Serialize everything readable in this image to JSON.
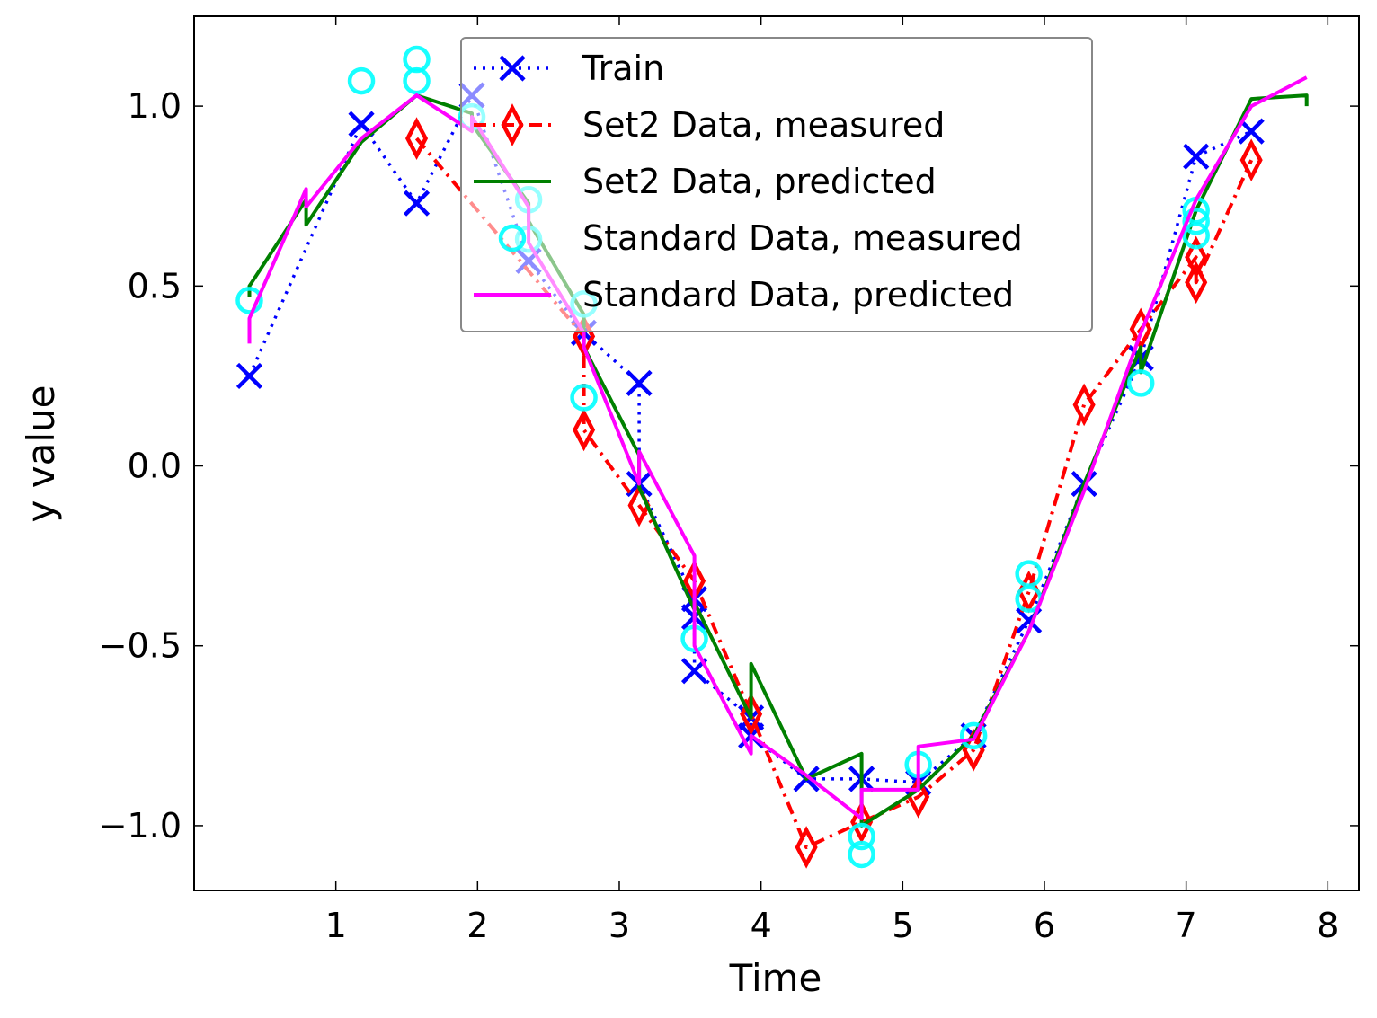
{
  "chart_data": {
    "type": "line",
    "title": "",
    "xlabel": "Time",
    "ylabel": "y value",
    "xlim": [
      0.0,
      8.22
    ],
    "ylim": [
      -1.18,
      1.25
    ],
    "xticks": [
      1,
      2,
      3,
      4,
      5,
      6,
      7,
      8
    ],
    "xtick_labels": [
      "1",
      "2",
      "3",
      "4",
      "5",
      "6",
      "7",
      "8"
    ],
    "yticks": [
      -1.0,
      -0.5,
      0.0,
      0.5,
      1.0
    ],
    "ytick_labels": [
      "−1.0",
      "−0.5",
      "0.0",
      "0.5",
      "1.0"
    ],
    "grid": false,
    "legend_position": "top-center",
    "series": [
      {
        "name": "Train",
        "style": "dotted",
        "marker": "x",
        "color": "#0000ff",
        "x": [
          0.39,
          1.18,
          1.57,
          1.96,
          2.36,
          2.75,
          3.14,
          3.14,
          3.53,
          3.53,
          3.53,
          3.93,
          3.93,
          4.32,
          4.71,
          5.11,
          5.5,
          5.89,
          6.28,
          6.68,
          7.07,
          7.46
        ],
        "y": [
          0.25,
          0.95,
          0.73,
          1.03,
          0.57,
          0.37,
          0.23,
          -0.05,
          -0.37,
          -0.42,
          -0.57,
          -0.7,
          -0.75,
          -0.87,
          -0.87,
          -0.88,
          -0.75,
          -0.43,
          -0.05,
          0.3,
          0.86,
          0.93
        ]
      },
      {
        "name": "Set2 Data, measured",
        "style": "dashdot",
        "marker": "diamond",
        "color": "#ff0000",
        "x": [
          1.57,
          2.75,
          2.75,
          3.14,
          3.53,
          3.93,
          4.32,
          4.71,
          5.11,
          5.5,
          5.89,
          6.28,
          6.68,
          7.07,
          7.07,
          7.46
        ],
        "y": [
          0.91,
          0.36,
          0.1,
          -0.11,
          -0.32,
          -0.69,
          -1.06,
          -0.99,
          -0.92,
          -0.79,
          -0.35,
          0.17,
          0.38,
          0.58,
          0.51,
          0.85
        ]
      },
      {
        "name": "Set2 Data, predicted",
        "style": "solid",
        "marker": "none",
        "color": "#008000",
        "x": [
          0.39,
          0.39,
          0.79,
          0.79,
          1.18,
          1.57,
          1.96,
          1.96,
          2.36,
          2.36,
          2.75,
          2.75,
          3.14,
          3.14,
          3.53,
          3.53,
          3.93,
          3.93,
          4.32,
          4.71,
          4.71,
          5.11,
          5.5,
          5.89,
          6.28,
          6.68,
          6.68,
          7.07,
          7.46,
          7.85,
          7.85
        ],
        "y": [
          0.47,
          0.5,
          0.74,
          0.67,
          0.9,
          1.03,
          0.98,
          0.95,
          0.73,
          0.68,
          0.42,
          0.33,
          0.03,
          -0.06,
          -0.4,
          -0.38,
          -0.7,
          -0.55,
          -0.87,
          -0.8,
          -1.0,
          -0.9,
          -0.75,
          -0.46,
          -0.05,
          0.33,
          0.26,
          0.71,
          1.02,
          1.03,
          1.0
        ]
      },
      {
        "name": "Standard Data, measured",
        "style": "none",
        "marker": "circle",
        "color": "#00ffff",
        "x": [
          0.39,
          1.18,
          1.57,
          1.57,
          1.96,
          2.36,
          2.36,
          2.75,
          2.75,
          3.53,
          4.71,
          4.71,
          5.11,
          5.5,
          5.89,
          5.89,
          6.68,
          7.07,
          7.07,
          7.07
        ],
        "y": [
          0.46,
          1.07,
          1.13,
          1.07,
          0.97,
          0.74,
          0.63,
          0.45,
          0.19,
          -0.48,
          -1.03,
          -1.08,
          -0.83,
          -0.75,
          -0.3,
          -0.37,
          0.23,
          0.71,
          0.68,
          0.64
        ]
      },
      {
        "name": "Standard Data, predicted",
        "style": "solid",
        "marker": "none",
        "color": "#ff00ff",
        "x": [
          0.39,
          0.39,
          0.79,
          0.79,
          1.18,
          1.57,
          1.96,
          1.96,
          2.36,
          2.36,
          2.75,
          2.75,
          3.14,
          3.14,
          3.53,
          3.53,
          3.93,
          3.93,
          4.32,
          4.71,
          4.71,
          5.11,
          5.11,
          5.5,
          5.89,
          6.28,
          6.68,
          7.07,
          7.46,
          7.85
        ],
        "y": [
          0.34,
          0.41,
          0.77,
          0.72,
          0.91,
          1.03,
          0.93,
          0.97,
          0.72,
          0.62,
          0.37,
          0.33,
          -0.05,
          0.04,
          -0.25,
          -0.5,
          -0.8,
          -0.75,
          -0.86,
          -0.98,
          -0.9,
          -0.9,
          -0.78,
          -0.76,
          -0.46,
          -0.07,
          0.37,
          0.74,
          1.0,
          1.08
        ]
      }
    ]
  }
}
